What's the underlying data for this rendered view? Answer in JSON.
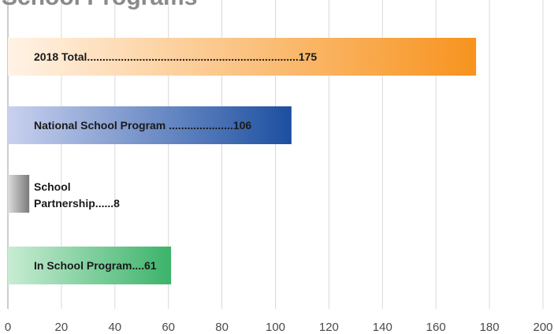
{
  "chart_data": {
    "type": "bar",
    "orientation": "horizontal",
    "title": "School Programs",
    "categories": [
      "2018 Total",
      "National School Program",
      "School Partnership",
      "In School Program"
    ],
    "values": [
      175,
      106,
      8,
      61
    ],
    "labels": [
      [
        "2018 Total.....................................................................175"
      ],
      [
        "National School Program .....................106"
      ],
      [
        "School",
        "Partnership......8"
      ],
      [
        "In School Program....61"
      ]
    ],
    "xlim": [
      0,
      200
    ],
    "xticks": [
      0,
      20,
      40,
      60,
      80,
      100,
      120,
      140,
      160,
      180,
      200
    ],
    "grid": true,
    "colors": [
      [
        "#fff3e6",
        "#f7931e"
      ],
      [
        "#c9d1ef",
        "#1c4fa0"
      ],
      [
        "#dcdcdc",
        "#7a7a7a"
      ],
      [
        "#c8ecd3",
        "#3bb36a"
      ]
    ]
  }
}
